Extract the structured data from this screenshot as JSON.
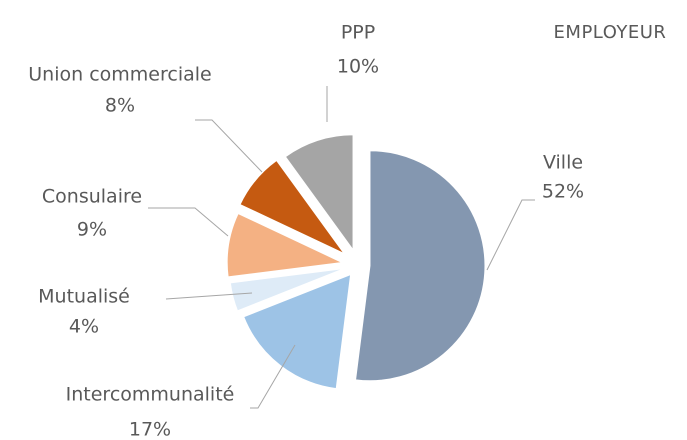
{
  "chart_data": {
    "type": "pie",
    "title": "EMPLOYEUR",
    "categories": [
      "Ville",
      "Intercommunalité",
      "Mutualisé",
      "Consulaire",
      "Union commerciale",
      "PPP"
    ],
    "values": [
      52,
      17,
      4,
      9,
      8,
      10
    ],
    "value_labels": [
      "52%",
      "17%",
      "4%",
      "9%",
      "8%",
      "10%"
    ],
    "colors": [
      "#8497b0",
      "#9dc3e6",
      "#deebf7",
      "#f4b183",
      "#c55a11",
      "#a5a5a5"
    ]
  }
}
